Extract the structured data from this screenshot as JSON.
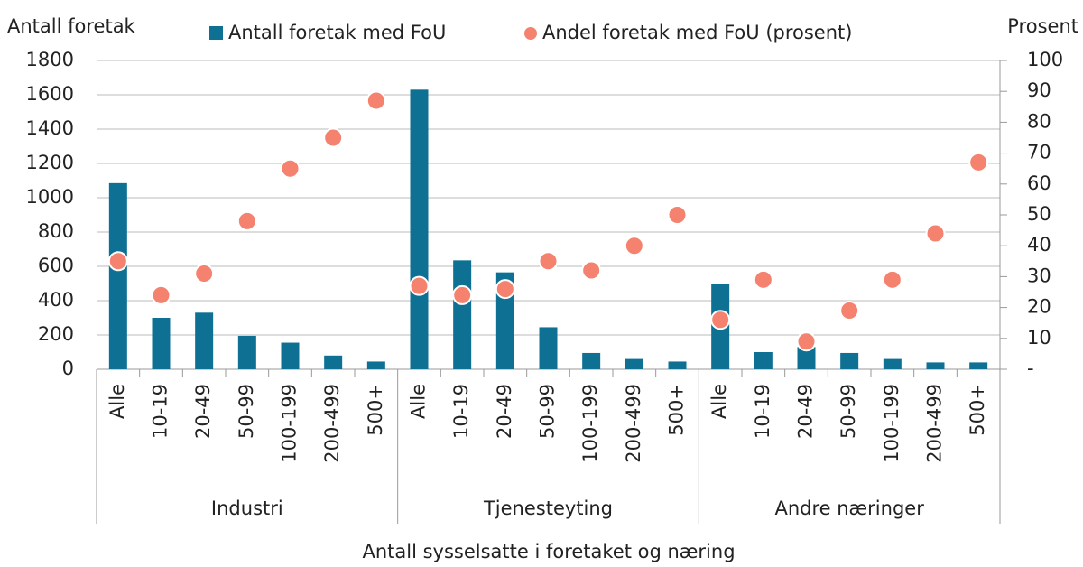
{
  "chart_data": {
    "type": "bar",
    "y_label": "Antall foretak",
    "y2_label": "Prosent",
    "x_label": "Antall sysselsatte i foretaket og næring",
    "groups": [
      "Industri",
      "Tjenesteyting",
      "Andre næringer"
    ],
    "categories": [
      "Alle",
      "10-19",
      "20-49",
      "50-99",
      "100-199",
      "200-499",
      "500+",
      "Alle",
      "10-19",
      "20-49",
      "50-99",
      "100-199",
      "200-499",
      "500+",
      "Alle",
      "10-19",
      "20-49",
      "50-99",
      "100-199",
      "200-499",
      "500+"
    ],
    "series": [
      {
        "name": "Antall foretak med FoU",
        "type": "bar",
        "color": "#0e7194",
        "values": [
          1085,
          300,
          330,
          195,
          155,
          80,
          45,
          1630,
          635,
          565,
          245,
          95,
          60,
          45,
          495,
          100,
          130,
          95,
          60,
          40,
          40
        ]
      },
      {
        "name": "Andel foretak med FoU (prosent)",
        "type": "scatter",
        "axis": "y2",
        "color": "#f4826f",
        "values": [
          35,
          24,
          31,
          48,
          65,
          75,
          87,
          27,
          24,
          26,
          35,
          32,
          40,
          50,
          16,
          29,
          9,
          19,
          29,
          44,
          67
        ]
      }
    ],
    "ylim": [
      0,
      1800
    ],
    "yticks": [
      0,
      200,
      400,
      600,
      800,
      1000,
      1200,
      1400,
      1600,
      1800
    ],
    "y2lim": [
      0,
      100
    ],
    "y2ticks": [
      {
        "value": 0,
        "label": "-"
      },
      10,
      20,
      30,
      40,
      50,
      60,
      70,
      80,
      90,
      100
    ],
    "grid": true
  }
}
